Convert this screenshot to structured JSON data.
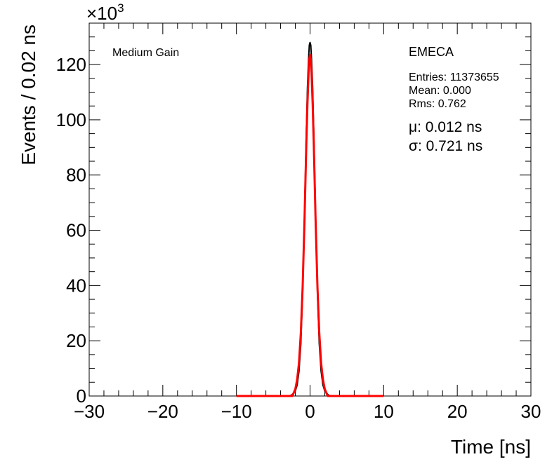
{
  "chart_data": {
    "type": "line",
    "xlabel": "Time [ns]",
    "ylabel": "Events / 0.02 ns",
    "xlim": [
      -30,
      30
    ],
    "ylim": [
      0,
      135
    ],
    "x_ticks": [
      -30,
      -20,
      -10,
      0,
      10,
      20,
      30
    ],
    "y_ticks": [
      0,
      20,
      40,
      60,
      80,
      100,
      120
    ],
    "x_tick_labels": [
      "−30",
      "−20",
      "−10",
      "0",
      "10",
      "20",
      "30"
    ],
    "y_tick_labels": [
      "0",
      "20",
      "40",
      "60",
      "80",
      "100",
      "120"
    ],
    "y_multiplier_base": "×10",
    "y_multiplier_exp": "3",
    "grid": false,
    "legend": "none",
    "label_left": "Medium Gain",
    "label_right": "EMECA",
    "stats": {
      "entries": "Entries: 11373655",
      "mean": "Mean: 0.000",
      "rms": "Rms: 0.762"
    },
    "fit": {
      "mu_text": "μ: 0.012 ns",
      "sigma_text": "σ: 0.721 ns"
    },
    "series": [
      {
        "color": "#000000",
        "x": [
          -3.0,
          -2.5,
          -2.0,
          -1.75,
          -1.5,
          -1.25,
          -1.0,
          -0.75,
          -0.5,
          -0.35,
          -0.2,
          -0.1,
          0.0,
          0.1,
          0.2,
          0.35,
          0.5,
          0.75,
          1.0,
          1.25,
          1.5,
          1.75,
          2.0,
          2.5,
          3.0
        ],
        "y": [
          0.0,
          0.3,
          1.8,
          4.0,
          9.0,
          19.0,
          38.0,
          66.0,
          96.0,
          112.0,
          122.0,
          127.0,
          128.0,
          127.0,
          122.0,
          112.0,
          96.0,
          66.0,
          38.0,
          19.0,
          9.0,
          4.0,
          1.8,
          0.3,
          0.0
        ]
      },
      {
        "color": "#ff0000",
        "x": [
          -10.0,
          -2.4,
          -2.0,
          -1.75,
          -1.5,
          -1.25,
          -1.0,
          -0.75,
          -0.5,
          -0.35,
          -0.2,
          -0.1,
          0.0,
          0.1,
          0.2,
          0.35,
          0.5,
          0.75,
          1.0,
          1.25,
          1.5,
          1.75,
          2.0,
          2.4,
          10.0
        ],
        "y": [
          0.0,
          0.0,
          2.5,
          6.0,
          12.0,
          23.0,
          40.0,
          64.0,
          92.0,
          106.0,
          117.0,
          122.0,
          123.5,
          122.0,
          117.0,
          106.0,
          92.0,
          64.0,
          40.0,
          23.0,
          12.0,
          6.0,
          2.5,
          0.0,
          0.0
        ]
      }
    ]
  }
}
